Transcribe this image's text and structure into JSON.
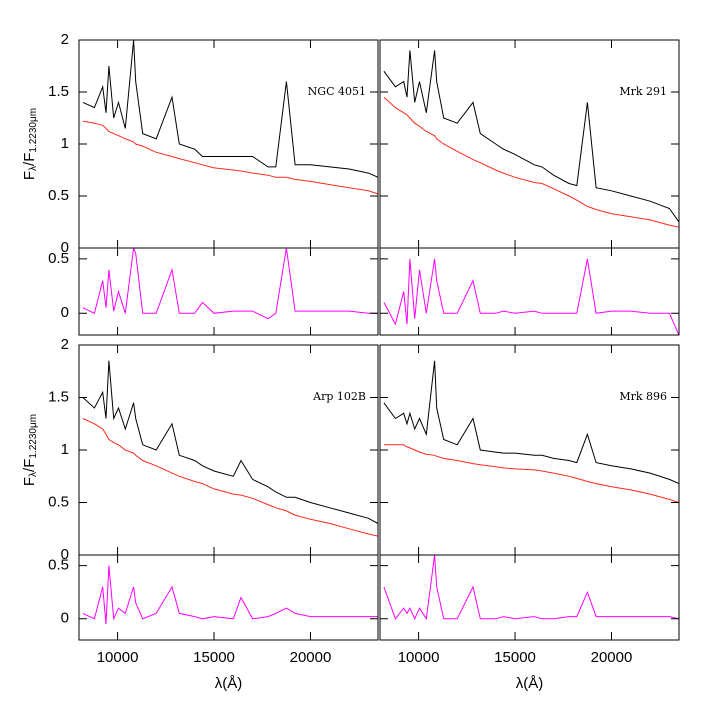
{
  "chart_data": [
    {
      "type": "line",
      "annotation": "NGC 4051",
      "ylabel": [
        "F",
        "λ",
        "/F",
        "1.2230μm"
      ],
      "x": [
        8200,
        8800,
        9230,
        9400,
        9550,
        9800,
        10050,
        10400,
        10830,
        10940,
        11300,
        12000,
        12820,
        13200,
        14000,
        14400,
        15000,
        16000,
        16400,
        17000,
        17800,
        18200,
        18750,
        19200,
        20000,
        21000,
        22000,
        23000,
        23500
      ],
      "series": [
        {
          "color": "#000000",
          "values": [
            1.4,
            1.35,
            1.55,
            1.3,
            1.75,
            1.25,
            1.4,
            1.15,
            2.0,
            1.6,
            1.1,
            1.05,
            1.45,
            1.0,
            0.95,
            0.88,
            0.88,
            0.88,
            0.88,
            0.88,
            0.78,
            0.78,
            1.6,
            0.8,
            0.8,
            0.78,
            0.76,
            0.72,
            0.68
          ]
        },
        {
          "color": "#ff2a1a",
          "values": [
            1.22,
            1.2,
            1.18,
            1.15,
            1.12,
            1.1,
            1.08,
            1.05,
            1.02,
            1.0,
            0.98,
            0.92,
            0.88,
            0.86,
            0.82,
            0.8,
            0.77,
            0.75,
            0.74,
            0.72,
            0.7,
            0.68,
            0.68,
            0.66,
            0.64,
            0.61,
            0.58,
            0.55,
            0.52
          ]
        }
      ],
      "xlim": [
        8000,
        23500
      ],
      "xticks": [
        10000,
        15000,
        20000
      ],
      "ylim": [
        0,
        2
      ],
      "yticks": [
        0,
        0.5,
        1,
        1.5,
        2
      ]
    },
    {
      "type": "line",
      "x": [
        8200,
        8800,
        9230,
        9400,
        9550,
        9800,
        10050,
        10400,
        10830,
        10940,
        11300,
        12000,
        12820,
        13200,
        14000,
        14400,
        15000,
        16000,
        16400,
        17000,
        17800,
        18200,
        18750,
        19200,
        20000,
        21000,
        22000,
        23000,
        23500
      ],
      "series": [
        {
          "color": "#ff00ff",
          "values": [
            0.05,
            0.0,
            0.3,
            0.05,
            0.4,
            0.02,
            0.2,
            0.0,
            0.6,
            0.55,
            0.0,
            0.0,
            0.4,
            0.0,
            0.0,
            0.1,
            0.0,
            0.02,
            0.02,
            0.02,
            -0.05,
            0.0,
            0.6,
            0.02,
            0.02,
            0.02,
            0.02,
            0.0,
            0.0
          ]
        }
      ],
      "xlim": [
        8000,
        23500
      ],
      "xticks": [
        10000,
        15000,
        20000
      ],
      "ylim": [
        -0.2,
        0.6
      ],
      "yticks": [
        0,
        0.5
      ]
    },
    {
      "type": "line",
      "annotation": "Mrk 291",
      "x": [
        8200,
        8800,
        9230,
        9400,
        9550,
        9800,
        10050,
        10400,
        10830,
        10940,
        11300,
        12000,
        12820,
        13200,
        14000,
        14400,
        15000,
        16000,
        16400,
        17000,
        17800,
        18200,
        18750,
        19200,
        20000,
        21000,
        22000,
        23000,
        23500
      ],
      "series": [
        {
          "color": "#000000",
          "values": [
            1.7,
            1.55,
            1.6,
            1.45,
            1.9,
            1.4,
            1.6,
            1.3,
            1.9,
            1.6,
            1.25,
            1.2,
            1.4,
            1.1,
            1.0,
            0.95,
            0.9,
            0.8,
            0.78,
            0.7,
            0.62,
            0.6,
            1.4,
            0.58,
            0.55,
            0.5,
            0.45,
            0.38,
            0.25
          ]
        },
        {
          "color": "#ff2a1a",
          "values": [
            1.45,
            1.35,
            1.3,
            1.28,
            1.25,
            1.2,
            1.17,
            1.12,
            1.08,
            1.05,
            1.0,
            0.93,
            0.85,
            0.82,
            0.75,
            0.72,
            0.68,
            0.63,
            0.62,
            0.57,
            0.5,
            0.46,
            0.4,
            0.37,
            0.33,
            0.3,
            0.27,
            0.22,
            0.2
          ]
        }
      ],
      "xlim": [
        8000,
        23500
      ],
      "xticks": [
        10000,
        15000,
        20000
      ],
      "ylim": [
        0,
        2
      ],
      "yticks": [
        0,
        0.5,
        1,
        1.5,
        2
      ]
    },
    {
      "type": "line",
      "x": [
        8200,
        8800,
        9230,
        9400,
        9550,
        9800,
        10050,
        10400,
        10830,
        10940,
        11300,
        12000,
        12820,
        13200,
        14000,
        14400,
        15000,
        16000,
        16400,
        17000,
        17800,
        18200,
        18750,
        19200,
        20000,
        21000,
        22000,
        23000,
        23500
      ],
      "series": [
        {
          "color": "#ff00ff",
          "values": [
            0.1,
            -0.1,
            0.2,
            -0.1,
            0.5,
            -0.05,
            0.4,
            0.0,
            0.5,
            0.3,
            0.0,
            0.0,
            0.3,
            0.0,
            0.0,
            0.02,
            0.0,
            0.02,
            0.0,
            0.0,
            0.0,
            0.0,
            0.5,
            0.0,
            0.02,
            0.02,
            0.0,
            0.0,
            -0.2
          ]
        }
      ],
      "xlim": [
        8000,
        23500
      ],
      "xticks": [
        10000,
        15000,
        20000
      ],
      "ylim": [
        -0.2,
        0.6
      ],
      "yticks": [
        0,
        0.5
      ]
    },
    {
      "type": "line",
      "annotation": "Arp 102B",
      "ylabel": [
        "F",
        "λ",
        "/F",
        "1.2230μm"
      ],
      "x": [
        8200,
        8800,
        9230,
        9400,
        9550,
        9800,
        10050,
        10400,
        10830,
        10940,
        11300,
        12000,
        12820,
        13200,
        14000,
        14400,
        15000,
        16000,
        16400,
        17000,
        17800,
        18200,
        18750,
        19200,
        20000,
        21000,
        22000,
        23000,
        23500
      ],
      "series": [
        {
          "color": "#000000",
          "values": [
            1.5,
            1.4,
            1.55,
            1.3,
            1.85,
            1.3,
            1.4,
            1.2,
            1.45,
            1.3,
            1.05,
            1.0,
            1.25,
            0.95,
            0.9,
            0.85,
            0.8,
            0.75,
            0.9,
            0.72,
            0.65,
            0.6,
            0.55,
            0.55,
            0.5,
            0.45,
            0.4,
            0.35,
            0.3
          ]
        },
        {
          "color": "#ff2a1a",
          "values": [
            1.3,
            1.25,
            1.2,
            1.15,
            1.1,
            1.07,
            1.05,
            1.0,
            0.97,
            0.95,
            0.9,
            0.85,
            0.78,
            0.75,
            0.7,
            0.68,
            0.63,
            0.58,
            0.57,
            0.54,
            0.48,
            0.45,
            0.42,
            0.38,
            0.34,
            0.3,
            0.25,
            0.2,
            0.18
          ]
        }
      ],
      "xlim": [
        8000,
        23500
      ],
      "xticks": [
        10000,
        15000,
        20000
      ],
      "ylim": [
        0,
        2
      ],
      "yticks": [
        0,
        0.5,
        1,
        1.5,
        2
      ]
    },
    {
      "type": "line",
      "xlabel": "λ(Å)",
      "x": [
        8200,
        8800,
        9230,
        9400,
        9550,
        9800,
        10050,
        10400,
        10830,
        10940,
        11300,
        12000,
        12820,
        13200,
        14000,
        14400,
        15000,
        16000,
        16400,
        17000,
        17800,
        18200,
        18750,
        19200,
        20000,
        21000,
        22000,
        23000,
        23500
      ],
      "series": [
        {
          "color": "#ff00ff",
          "values": [
            0.05,
            0.0,
            0.3,
            -0.05,
            0.5,
            0.0,
            0.1,
            0.05,
            0.3,
            0.15,
            0.0,
            0.05,
            0.3,
            0.05,
            0.02,
            0.0,
            0.02,
            0.0,
            0.2,
            0.0,
            0.02,
            0.05,
            0.1,
            0.05,
            0.02,
            0.02,
            0.02,
            0.02,
            0.02
          ]
        }
      ],
      "xlim": [
        8000,
        23500
      ],
      "xticks": [
        10000,
        15000,
        20000
      ],
      "ylim": [
        -0.2,
        0.6
      ],
      "yticks": [
        0,
        0.5
      ]
    },
    {
      "type": "line",
      "annotation": "Mrk 896",
      "x": [
        8200,
        8800,
        9230,
        9400,
        9550,
        9800,
        10050,
        10400,
        10830,
        10940,
        11300,
        12000,
        12820,
        13200,
        14000,
        14400,
        15000,
        16000,
        16400,
        17000,
        17800,
        18200,
        18750,
        19200,
        20000,
        21000,
        22000,
        23000,
        23500
      ],
      "series": [
        {
          "color": "#000000",
          "values": [
            1.45,
            1.3,
            1.35,
            1.25,
            1.35,
            1.2,
            1.3,
            1.15,
            1.85,
            1.4,
            1.1,
            1.05,
            1.3,
            1.0,
            0.98,
            0.97,
            0.97,
            0.95,
            0.95,
            0.92,
            0.9,
            0.88,
            1.15,
            0.88,
            0.85,
            0.82,
            0.78,
            0.72,
            0.68
          ]
        },
        {
          "color": "#ff2a1a",
          "values": [
            1.05,
            1.05,
            1.05,
            1.03,
            1.02,
            1.0,
            0.98,
            0.96,
            0.95,
            0.94,
            0.92,
            0.9,
            0.87,
            0.86,
            0.84,
            0.83,
            0.82,
            0.81,
            0.8,
            0.78,
            0.75,
            0.73,
            0.7,
            0.68,
            0.65,
            0.62,
            0.58,
            0.53,
            0.5
          ]
        }
      ],
      "xlim": [
        8000,
        23500
      ],
      "xticks": [
        10000,
        15000,
        20000
      ],
      "ylim": [
        0,
        2
      ],
      "yticks": [
        0,
        0.5,
        1,
        1.5,
        2
      ]
    },
    {
      "type": "line",
      "xlabel": "λ(Å)",
      "x": [
        8200,
        8800,
        9230,
        9400,
        9550,
        9800,
        10050,
        10400,
        10830,
        10940,
        11300,
        12000,
        12820,
        13200,
        14000,
        14400,
        15000,
        16000,
        16400,
        17000,
        17800,
        18200,
        18750,
        19200,
        20000,
        21000,
        22000,
        23000,
        23500
      ],
      "series": [
        {
          "color": "#ff00ff",
          "values": [
            0.3,
            0.0,
            0.1,
            0.05,
            0.1,
            0.0,
            0.1,
            0.0,
            0.6,
            0.3,
            0.0,
            0.0,
            0.3,
            0.0,
            0.0,
            0.02,
            0.0,
            0.02,
            0.0,
            0.0,
            0.02,
            0.02,
            0.25,
            0.02,
            0.02,
            0.02,
            0.02,
            0.02,
            0.0
          ]
        }
      ],
      "xlim": [
        8000,
        23500
      ],
      "xticks": [
        10000,
        15000,
        20000
      ],
      "ylim": [
        -0.2,
        0.6
      ],
      "yticks": [
        0,
        0.5
      ]
    }
  ]
}
